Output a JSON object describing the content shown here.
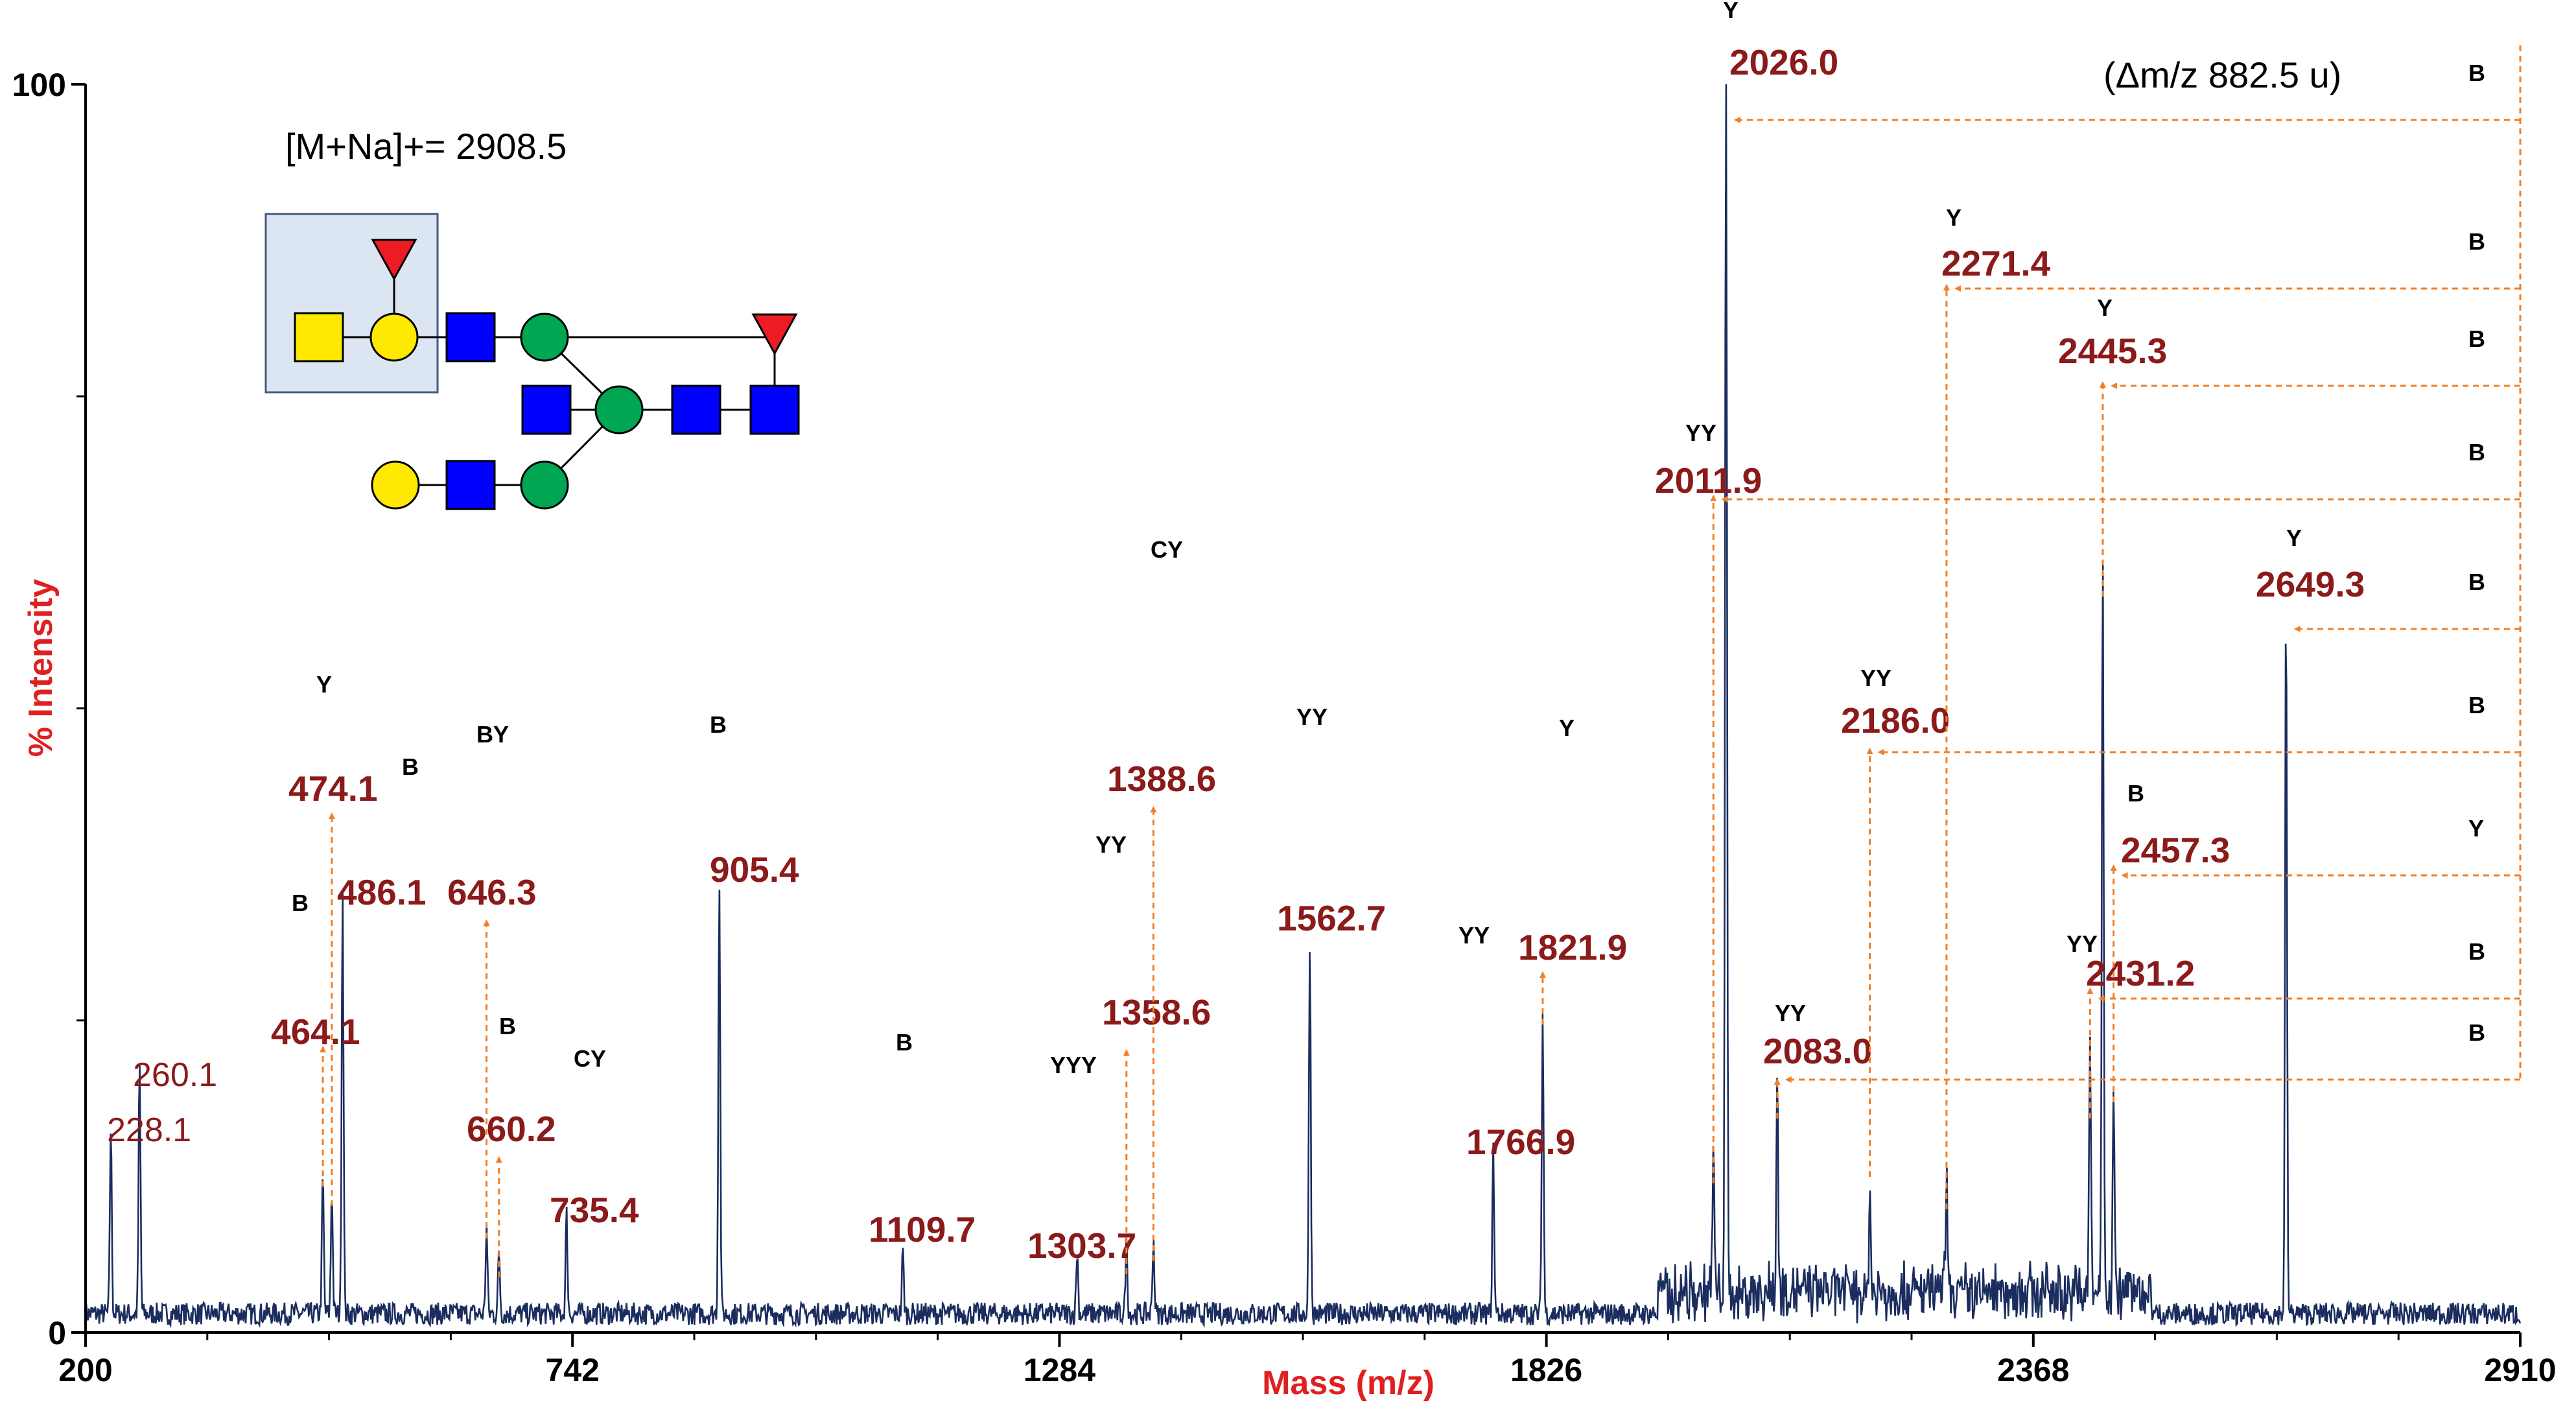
{
  "chart_data": {
    "type": "line",
    "title": "",
    "xlabel": "Mass (m/z)",
    "ylabel": "% Intensity",
    "xlim": [
      200,
      2910
    ],
    "ylim": [
      0,
      100
    ],
    "x_ticks": [
      "200",
      "742",
      "1284",
      "1826",
      "2368",
      "2910"
    ],
    "y_ticks": [
      "0",
      "100"
    ],
    "precursor": "[M+Na]+= 2908.5",
    "delta_label": "(Δm/z 882.5 u)",
    "colors": {
      "spectrum": "#1a2d5e",
      "labels": "#8B1A1A",
      "arrows": "#F07F27",
      "axis_title": "#e02020"
    },
    "peaks": [
      {
        "mz": 228.1,
        "intensity": 15,
        "label": "228.1",
        "bold": false
      },
      {
        "mz": 260.1,
        "intensity": 20,
        "label": "260.1",
        "bold": false
      },
      {
        "mz": 464.1,
        "intensity": 11,
        "label": "464.1",
        "bold": true,
        "tag": "B"
      },
      {
        "mz": 474.1,
        "intensity": 10,
        "label": "474.1",
        "bold": true,
        "tag": "Y"
      },
      {
        "mz": 486.1,
        "intensity": 34,
        "label": "486.1",
        "bold": true,
        "tag": "B"
      },
      {
        "mz": 646.3,
        "intensity": 7,
        "label": "646.3",
        "bold": true,
        "tag": "BY"
      },
      {
        "mz": 660.2,
        "intensity": 5,
        "label": "660.2",
        "bold": true,
        "tag": "B"
      },
      {
        "mz": 735.4,
        "intensity": 8,
        "label": "735.4",
        "bold": true,
        "tag": "CY"
      },
      {
        "mz": 905.4,
        "intensity": 35,
        "label": "905.4",
        "bold": true,
        "tag": "B"
      },
      {
        "mz": 1109.7,
        "intensity": 5,
        "label": "1109.7",
        "bold": true,
        "tag": "B"
      },
      {
        "mz": 1303.7,
        "intensity": 5,
        "label": "1303.7",
        "bold": true,
        "tag": "YYY"
      },
      {
        "mz": 1358.6,
        "intensity": 6,
        "label": "1358.6",
        "bold": true,
        "tag": "YY"
      },
      {
        "mz": 1388.6,
        "intensity": 6,
        "label": "1388.6",
        "bold": true,
        "tag": "CY"
      },
      {
        "mz": 1562.7,
        "intensity": 30,
        "label": "1562.7",
        "bold": true,
        "tag": "YY"
      },
      {
        "mz": 1766.9,
        "intensity": 13,
        "label": "1766.9",
        "bold": true,
        "tag": "YY"
      },
      {
        "mz": 1821.9,
        "intensity": 24,
        "label": "1821.9",
        "bold": true,
        "tag": "Y"
      },
      {
        "mz": 2011.9,
        "intensity": 11,
        "label": "2011.9",
        "bold": true,
        "tag": "YY"
      },
      {
        "mz": 2026.0,
        "intensity": 100,
        "label": "2026.0",
        "bold": true,
        "tag": "Y"
      },
      {
        "mz": 2083.0,
        "intensity": 17,
        "label": "2083.0",
        "bold": true,
        "tag": "YY"
      },
      {
        "mz": 2186.0,
        "intensity": 8,
        "label": "2186.0",
        "bold": true,
        "tag": "YY"
      },
      {
        "mz": 2271.4,
        "intensity": 9,
        "label": "2271.4",
        "bold": true,
        "tag": "Y"
      },
      {
        "mz": 2431.2,
        "intensity": 20,
        "label": "2431.2",
        "bold": true,
        "tag": "YY"
      },
      {
        "mz": 2445.3,
        "intensity": 58,
        "label": "2445.3",
        "bold": true,
        "tag": "Y"
      },
      {
        "mz": 2457.3,
        "intensity": 17,
        "label": "2457.3",
        "bold": true,
        "tag": "B"
      },
      {
        "mz": 2649.3,
        "intensity": 57,
        "label": "2649.3",
        "bold": true,
        "tag": "Y"
      }
    ],
    "loss_arrows": [
      {
        "target": "2026.0",
        "loss_tag": "B"
      },
      {
        "target": "2271.4",
        "loss_tag": "B"
      },
      {
        "target": "2445.3",
        "loss_tag": "B"
      },
      {
        "target": "2011.9",
        "loss_tag": "B"
      },
      {
        "target": "2649.3",
        "loss_tag": "B"
      },
      {
        "target": "2186.0",
        "loss_tag": "B"
      },
      {
        "target": "2457.3",
        "loss_tag": "Y"
      },
      {
        "target": "2431.2",
        "loss_tag": "B"
      },
      {
        "target": "2083.0",
        "loss_tag": "B"
      }
    ]
  }
}
